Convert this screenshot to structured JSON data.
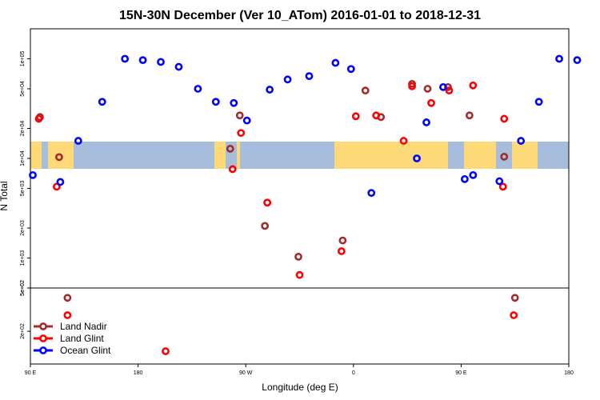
{
  "chart_data": {
    "type": "scatter",
    "title": "15N-30N December (Ver 10_ATom)   2016-01-01 to 2018-12-31",
    "xlabel": "Longitude (deg E)",
    "ylabel": "N Total",
    "x_ticks": [
      {
        "value": 90,
        "label": "90 E"
      },
      {
        "value": 180,
        "label": "180"
      },
      {
        "value": 270,
        "label": "90 W"
      },
      {
        "value": 360,
        "label": "0"
      },
      {
        "value": 450,
        "label": "90 E"
      },
      {
        "value": 540,
        "label": "180"
      }
    ],
    "y_ticks_upper": [
      {
        "value": 100000,
        "label": "1e+05"
      },
      {
        "value": 50000,
        "label": "5e+04"
      },
      {
        "value": 20000,
        "label": "2e+04"
      },
      {
        "value": 10000,
        "label": "1e+04"
      },
      {
        "value": 5000,
        "label": "5e+03"
      },
      {
        "value": 2000,
        "label": "2e+03"
      },
      {
        "value": 1000,
        "label": "1e+03"
      },
      {
        "value": 500,
        "label": "5e+02"
      }
    ],
    "y_ticks_lower": [
      {
        "value": 500,
        "label": "5e+02"
      },
      {
        "value": 200,
        "label": "2e+02"
      }
    ],
    "upper_panel_ylim": [
      500,
      200000
    ],
    "lower_panel_ylim": [
      100,
      500
    ],
    "map_band": {
      "lat_range": "15N-30N",
      "ocean_color": "#a6bddb",
      "land_color": "#fdd977"
    },
    "legend_position": "bottom-left",
    "series": [
      {
        "name": "Land Nadir",
        "color": "#a52a2a",
        "points": [
          [
            98,
            26000
          ],
          [
            114,
            10300
          ],
          [
            121,
            406
          ],
          [
            257,
            12500
          ],
          [
            265,
            27000
          ],
          [
            286,
            2100
          ],
          [
            314,
            1030
          ],
          [
            351,
            1500
          ],
          [
            370,
            48000
          ],
          [
            383,
            26000
          ],
          [
            409,
            56000
          ],
          [
            422,
            50000
          ],
          [
            439,
            52000
          ],
          [
            457,
            27000
          ],
          [
            486,
            10400
          ],
          [
            495,
            406
          ]
        ]
      },
      {
        "name": "Land Glint",
        "color": "#ff0000",
        "points": [
          [
            97,
            25000
          ],
          [
            112,
            5200
          ],
          [
            121,
            281
          ],
          [
            203,
            131
          ],
          [
            259,
            7800
          ],
          [
            266,
            18000
          ],
          [
            288,
            3600
          ],
          [
            315,
            676
          ],
          [
            350,
            1170
          ],
          [
            362,
            26500
          ],
          [
            379,
            27000
          ],
          [
            402,
            15000
          ],
          [
            409,
            53000
          ],
          [
            425,
            36000
          ],
          [
            440,
            48000
          ],
          [
            460,
            54000
          ],
          [
            486,
            25000
          ],
          [
            485,
            5200
          ],
          [
            494,
            281
          ]
        ]
      },
      {
        "name": "Ocean Glint",
        "color": "#0000ff",
        "points": [
          [
            92,
            6800
          ],
          [
            115,
            5800
          ],
          [
            130,
            15000
          ],
          [
            150,
            37000
          ],
          [
            169,
            100000
          ],
          [
            184,
            97000
          ],
          [
            199,
            93000
          ],
          [
            214,
            83000
          ],
          [
            230,
            50000
          ],
          [
            245,
            37000
          ],
          [
            260,
            36000
          ],
          [
            271,
            24000
          ],
          [
            290,
            49000
          ],
          [
            305,
            62000
          ],
          [
            323,
            67000
          ],
          [
            345,
            91000
          ],
          [
            358,
            79000
          ],
          [
            375,
            4500
          ],
          [
            413,
            10000
          ],
          [
            421,
            23000
          ],
          [
            435,
            52000
          ],
          [
            453,
            6200
          ],
          [
            460,
            6800
          ],
          [
            482,
            5900
          ],
          [
            500,
            15000
          ],
          [
            515,
            37000
          ],
          [
            532,
            100000
          ],
          [
            547,
            97000
          ]
        ]
      }
    ]
  }
}
